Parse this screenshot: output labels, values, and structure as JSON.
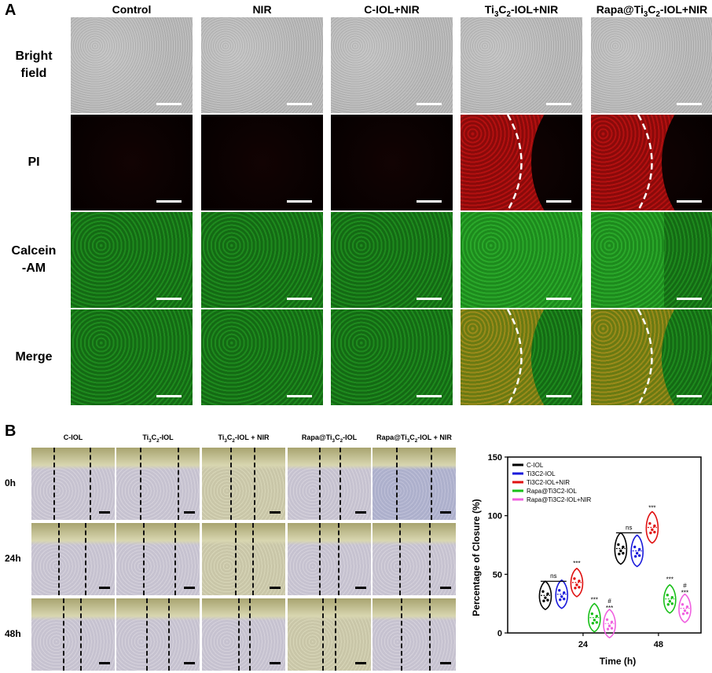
{
  "panel_a": {
    "label": "A",
    "columns": [
      "Control",
      "NIR",
      "C-IOL+NIR",
      "Ti3C2-IOL+NIR",
      "Rapa@Ti3C2-IOL+NIR"
    ],
    "rows": [
      "Bright\nfield",
      "PI",
      "Calcein\n-AM",
      "Merge"
    ]
  },
  "panel_b": {
    "label": "B",
    "columns": [
      "C-IOL",
      "Ti3C2-IOL",
      "Ti3C2-IOL + NIR",
      "Rapa@Ti3C2-IOL",
      "Rapa@Ti3C2-IOL + NIR"
    ],
    "rows": [
      "0h",
      "24h",
      "48h"
    ]
  },
  "chart_data": {
    "type": "violin",
    "xlabel": "Time (h)",
    "ylabel": "Percentage of Closure (%)",
    "categories": [
      "24",
      "48"
    ],
    "ylim": [
      0,
      150
    ],
    "yticks": [
      0,
      50,
      100,
      150
    ],
    "series": [
      {
        "name": "C-IOL",
        "color": "#000000",
        "values": [
          32,
          72
        ]
      },
      {
        "name": "Ti3C2-IOL",
        "color": "#1a1adb",
        "values": [
          33,
          70
        ]
      },
      {
        "name": "Ti3C2-IOL+NIR",
        "color": "#e01010",
        "values": [
          43,
          90
        ]
      },
      {
        "name": "Rapa@Ti3C2-IOL",
        "color": "#19c019",
        "values": [
          13,
          29
        ]
      },
      {
        "name": "Rapa@Ti3C2-IOL+NIR",
        "color": "#f060e0",
        "values": [
          8,
          21
        ]
      }
    ],
    "annotations": [
      "ns",
      "***",
      "***",
      "#",
      "***",
      "ns",
      "***",
      "***",
      "#",
      "***"
    ]
  }
}
